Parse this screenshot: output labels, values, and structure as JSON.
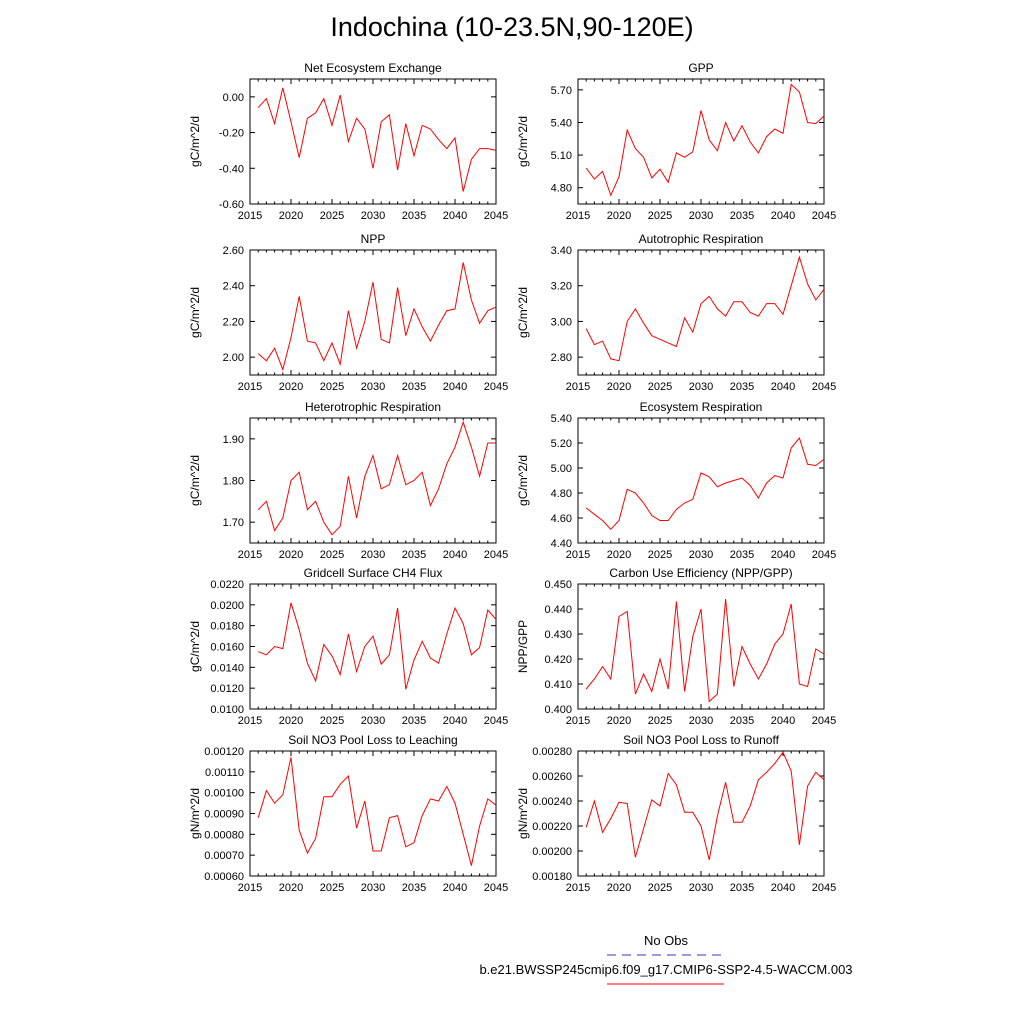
{
  "title": "Indochina (10-23.5N,90-120E)",
  "legend": {
    "obs_label": "No Obs",
    "obs_color": "#3333cc",
    "model_label": "b.e21.BWSSP245cmip6.f09_g17.CMIP6-SSP2-4.5-WACCM.003",
    "model_color": "#ff0000"
  },
  "chart_data": [
    {
      "type": "line",
      "title": "Net Ecosystem Exchange",
      "ylabel": "gC/m^2/d",
      "xlim": [
        2015,
        2045
      ],
      "ylim": [
        -0.6,
        0.1
      ],
      "xticks": [
        2015,
        2020,
        2025,
        2030,
        2035,
        2040,
        2045
      ],
      "yticks": [
        -0.6,
        -0.4,
        -0.2,
        0.0
      ],
      "ytick_labels": [
        "-0.60",
        "-0.40",
        "-0.20",
        "0.00"
      ],
      "x": [
        2016,
        2017,
        2018,
        2019,
        2020,
        2021,
        2022,
        2023,
        2024,
        2025,
        2026,
        2027,
        2028,
        2029,
        2030,
        2031,
        2032,
        2033,
        2034,
        2035,
        2036,
        2037,
        2038,
        2039,
        2040,
        2041,
        2042,
        2043,
        2044,
        2045
      ],
      "series": [
        {
          "color": "#ff0000",
          "values": [
            -0.06,
            -0.01,
            -0.15,
            0.05,
            -0.14,
            -0.34,
            -0.12,
            -0.09,
            -0.01,
            -0.16,
            0.01,
            -0.25,
            -0.12,
            -0.18,
            -0.4,
            -0.14,
            -0.1,
            -0.41,
            -0.15,
            -0.33,
            -0.16,
            -0.18,
            -0.24,
            -0.29,
            -0.23,
            -0.53,
            -0.35,
            -0.29,
            -0.29,
            -0.3
          ]
        }
      ]
    },
    {
      "type": "line",
      "title": "GPP",
      "ylabel": "gC/m^2/d",
      "xlim": [
        2015,
        2045
      ],
      "ylim": [
        4.65,
        5.8
      ],
      "xticks": [
        2015,
        2020,
        2025,
        2030,
        2035,
        2040,
        2045
      ],
      "yticks": [
        4.8,
        5.1,
        5.4,
        5.7
      ],
      "ytick_labels": [
        "4.80",
        "5.10",
        "5.40",
        "5.70"
      ],
      "x": [
        2016,
        2017,
        2018,
        2019,
        2020,
        2021,
        2022,
        2023,
        2024,
        2025,
        2026,
        2027,
        2028,
        2029,
        2030,
        2031,
        2032,
        2033,
        2034,
        2035,
        2036,
        2037,
        2038,
        2039,
        2040,
        2041,
        2042,
        2043,
        2044,
        2045
      ],
      "series": [
        {
          "color": "#ff0000",
          "values": [
            4.98,
            4.88,
            4.95,
            4.73,
            4.9,
            5.33,
            5.16,
            5.08,
            4.89,
            4.97,
            4.85,
            5.12,
            5.08,
            5.13,
            5.51,
            5.24,
            5.14,
            5.4,
            5.23,
            5.37,
            5.22,
            5.12,
            5.27,
            5.34,
            5.3,
            5.75,
            5.68,
            5.4,
            5.39,
            5.46
          ]
        }
      ]
    },
    {
      "type": "line",
      "title": "NPP",
      "ylabel": "gC/m^2/d",
      "xlim": [
        2015,
        2045
      ],
      "ylim": [
        1.9,
        2.6
      ],
      "xticks": [
        2015,
        2020,
        2025,
        2030,
        2035,
        2040,
        2045
      ],
      "yticks": [
        2.0,
        2.2,
        2.4,
        2.6
      ],
      "ytick_labels": [
        "2.00",
        "2.20",
        "2.40",
        "2.60"
      ],
      "x": [
        2016,
        2017,
        2018,
        2019,
        2020,
        2021,
        2022,
        2023,
        2024,
        2025,
        2026,
        2027,
        2028,
        2029,
        2030,
        2031,
        2032,
        2033,
        2034,
        2035,
        2036,
        2037,
        2038,
        2039,
        2040,
        2041,
        2042,
        2043,
        2044,
        2045
      ],
      "series": [
        {
          "color": "#ff0000",
          "values": [
            2.02,
            1.98,
            2.05,
            1.93,
            2.11,
            2.34,
            2.09,
            2.08,
            1.98,
            2.08,
            1.96,
            2.26,
            2.05,
            2.2,
            2.42,
            2.1,
            2.08,
            2.39,
            2.12,
            2.27,
            2.17,
            2.09,
            2.18,
            2.26,
            2.27,
            2.53,
            2.32,
            2.19,
            2.26,
            2.28
          ]
        }
      ]
    },
    {
      "type": "line",
      "title": "Autotrophic Respiration",
      "ylabel": "gC/m^2/d",
      "xlim": [
        2015,
        2045
      ],
      "ylim": [
        2.7,
        3.4
      ],
      "xticks": [
        2015,
        2020,
        2025,
        2030,
        2035,
        2040,
        2045
      ],
      "yticks": [
        2.8,
        3.0,
        3.2,
        3.4
      ],
      "ytick_labels": [
        "2.80",
        "3.00",
        "3.20",
        "3.40"
      ],
      "x": [
        2016,
        2017,
        2018,
        2019,
        2020,
        2021,
        2022,
        2023,
        2024,
        2025,
        2026,
        2027,
        2028,
        2029,
        2030,
        2031,
        2032,
        2033,
        2034,
        2035,
        2036,
        2037,
        2038,
        2039,
        2040,
        2041,
        2042,
        2043,
        2044,
        2045
      ],
      "series": [
        {
          "color": "#ff0000",
          "values": [
            2.96,
            2.87,
            2.89,
            2.79,
            2.78,
            3.0,
            3.07,
            2.99,
            2.92,
            2.9,
            2.88,
            2.86,
            3.02,
            2.94,
            3.1,
            3.14,
            3.07,
            3.03,
            3.11,
            3.11,
            3.05,
            3.03,
            3.1,
            3.1,
            3.04,
            3.2,
            3.36,
            3.21,
            3.12,
            3.18
          ]
        }
      ]
    },
    {
      "type": "line",
      "title": "Heterotrophic Respiration",
      "ylabel": "gC/m^2/d",
      "xlim": [
        2015,
        2045
      ],
      "ylim": [
        1.65,
        1.95
      ],
      "xticks": [
        2015,
        2020,
        2025,
        2030,
        2035,
        2040,
        2045
      ],
      "yticks": [
        1.7,
        1.8,
        1.9
      ],
      "ytick_labels": [
        "1.70",
        "1.80",
        "1.90"
      ],
      "x": [
        2016,
        2017,
        2018,
        2019,
        2020,
        2021,
        2022,
        2023,
        2024,
        2025,
        2026,
        2027,
        2028,
        2029,
        2030,
        2031,
        2032,
        2033,
        2034,
        2035,
        2036,
        2037,
        2038,
        2039,
        2040,
        2041,
        2042,
        2043,
        2044,
        2045
      ],
      "series": [
        {
          "color": "#ff0000",
          "values": [
            1.73,
            1.75,
            1.68,
            1.71,
            1.8,
            1.82,
            1.73,
            1.75,
            1.7,
            1.67,
            1.69,
            1.81,
            1.71,
            1.81,
            1.86,
            1.78,
            1.79,
            1.86,
            1.79,
            1.8,
            1.82,
            1.74,
            1.78,
            1.84,
            1.88,
            1.94,
            1.88,
            1.81,
            1.89,
            1.89
          ]
        }
      ]
    },
    {
      "type": "line",
      "title": "Ecosystem Respiration",
      "ylabel": "gC/m^2/d",
      "xlim": [
        2015,
        2045
      ],
      "ylim": [
        4.4,
        5.4
      ],
      "xticks": [
        2015,
        2020,
        2025,
        2030,
        2035,
        2040,
        2045
      ],
      "yticks": [
        4.4,
        4.6,
        4.8,
        5.0,
        5.2,
        5.4
      ],
      "ytick_labels": [
        "4.40",
        "4.60",
        "4.80",
        "5.00",
        "5.20",
        "5.40"
      ],
      "x": [
        2016,
        2017,
        2018,
        2019,
        2020,
        2021,
        2022,
        2023,
        2024,
        2025,
        2026,
        2027,
        2028,
        2029,
        2030,
        2031,
        2032,
        2033,
        2034,
        2035,
        2036,
        2037,
        2038,
        2039,
        2040,
        2041,
        2042,
        2043,
        2044,
        2045
      ],
      "series": [
        {
          "color": "#ff0000",
          "values": [
            4.68,
            4.63,
            4.58,
            4.51,
            4.58,
            4.83,
            4.8,
            4.72,
            4.62,
            4.58,
            4.58,
            4.67,
            4.72,
            4.75,
            4.96,
            4.93,
            4.85,
            4.88,
            4.9,
            4.92,
            4.86,
            4.76,
            4.88,
            4.94,
            4.92,
            5.16,
            5.24,
            5.03,
            5.02,
            5.07
          ]
        }
      ]
    },
    {
      "type": "line",
      "title": "Gridcell Surface CH4 Flux",
      "ylabel": "gC/m^2/d",
      "xlim": [
        2015,
        2045
      ],
      "ylim": [
        0.01,
        0.022
      ],
      "xticks": [
        2015,
        2020,
        2025,
        2030,
        2035,
        2040,
        2045
      ],
      "yticks": [
        0.01,
        0.012,
        0.014,
        0.016,
        0.018,
        0.02,
        0.022
      ],
      "ytick_labels": [
        "0.0100",
        "0.0120",
        "0.0140",
        "0.0160",
        "0.0180",
        "0.0200",
        "0.0220"
      ],
      "x": [
        2016,
        2017,
        2018,
        2019,
        2020,
        2021,
        2022,
        2023,
        2024,
        2025,
        2026,
        2027,
        2028,
        2029,
        2030,
        2031,
        2032,
        2033,
        2034,
        2035,
        2036,
        2037,
        2038,
        2039,
        2040,
        2041,
        2042,
        2043,
        2044,
        2045
      ],
      "series": [
        {
          "color": "#ff0000",
          "values": [
            0.0155,
            0.0152,
            0.016,
            0.0158,
            0.0202,
            0.0176,
            0.0144,
            0.0127,
            0.0162,
            0.0151,
            0.0133,
            0.0172,
            0.0136,
            0.016,
            0.017,
            0.0143,
            0.0152,
            0.0197,
            0.0119,
            0.0147,
            0.0165,
            0.0149,
            0.0144,
            0.0172,
            0.0197,
            0.0182,
            0.0152,
            0.0159,
            0.0195,
            0.0186
          ]
        }
      ]
    },
    {
      "type": "line",
      "title": "Carbon Use Efficiency (NPP/GPP)",
      "ylabel": "NPP/GPP",
      "xlim": [
        2015,
        2045
      ],
      "ylim": [
        0.4,
        0.45
      ],
      "xticks": [
        2015,
        2020,
        2025,
        2030,
        2035,
        2040,
        2045
      ],
      "yticks": [
        0.4,
        0.41,
        0.42,
        0.43,
        0.44,
        0.45
      ],
      "ytick_labels": [
        "0.400",
        "0.410",
        "0.420",
        "0.430",
        "0.440",
        "0.450"
      ],
      "x": [
        2016,
        2017,
        2018,
        2019,
        2020,
        2021,
        2022,
        2023,
        2024,
        2025,
        2026,
        2027,
        2028,
        2029,
        2030,
        2031,
        2032,
        2033,
        2034,
        2035,
        2036,
        2037,
        2038,
        2039,
        2040,
        2041,
        2042,
        2043,
        2044,
        2045
      ],
      "series": [
        {
          "color": "#ff0000",
          "values": [
            0.408,
            0.412,
            0.417,
            0.412,
            0.437,
            0.439,
            0.406,
            0.414,
            0.407,
            0.42,
            0.408,
            0.443,
            0.407,
            0.429,
            0.44,
            0.403,
            0.406,
            0.444,
            0.409,
            0.425,
            0.418,
            0.412,
            0.418,
            0.426,
            0.43,
            0.442,
            0.41,
            0.409,
            0.424,
            0.422
          ]
        }
      ]
    },
    {
      "type": "line",
      "title": "Soil NO3 Pool Loss to Leaching",
      "ylabel": "gN/m^2/d",
      "xlim": [
        2015,
        2045
      ],
      "ylim": [
        0.0006,
        0.0012
      ],
      "xticks": [
        2015,
        2020,
        2025,
        2030,
        2035,
        2040,
        2045
      ],
      "yticks": [
        0.0006,
        0.0007,
        0.0008,
        0.0009,
        0.001,
        0.0011,
        0.0012
      ],
      "ytick_labels": [
        "0.00060",
        "0.00070",
        "0.00080",
        "0.00090",
        "0.00100",
        "0.00110",
        "0.00120"
      ],
      "x": [
        2016,
        2017,
        2018,
        2019,
        2020,
        2021,
        2022,
        2023,
        2024,
        2025,
        2026,
        2027,
        2028,
        2029,
        2030,
        2031,
        2032,
        2033,
        2034,
        2035,
        2036,
        2037,
        2038,
        2039,
        2040,
        2041,
        2042,
        2043,
        2044,
        2045
      ],
      "series": [
        {
          "color": "#ff0000",
          "values": [
            0.00088,
            0.00101,
            0.00095,
            0.00099,
            0.00117,
            0.00082,
            0.00071,
            0.00078,
            0.00098,
            0.00098,
            0.00104,
            0.00108,
            0.00083,
            0.00096,
            0.00072,
            0.00072,
            0.00088,
            0.00089,
            0.00074,
            0.00076,
            0.00089,
            0.00097,
            0.00096,
            0.00103,
            0.00095,
            0.0008,
            0.00065,
            0.00084,
            0.00097,
            0.00094
          ]
        }
      ]
    },
    {
      "type": "line",
      "title": "Soil NO3 Pool Loss to Runoff",
      "ylabel": "gN/m^2/d",
      "xlim": [
        2015,
        2045
      ],
      "ylim": [
        0.0018,
        0.0028
      ],
      "xticks": [
        2015,
        2020,
        2025,
        2030,
        2035,
        2040,
        2045
      ],
      "yticks": [
        0.0018,
        0.002,
        0.0022,
        0.0024,
        0.0026,
        0.0028
      ],
      "ytick_labels": [
        "0.00180",
        "0.00200",
        "0.00220",
        "0.00240",
        "0.00260",
        "0.00280"
      ],
      "x": [
        2016,
        2017,
        2018,
        2019,
        2020,
        2021,
        2022,
        2023,
        2024,
        2025,
        2026,
        2027,
        2028,
        2029,
        2030,
        2031,
        2032,
        2033,
        2034,
        2035,
        2036,
        2037,
        2038,
        2039,
        2040,
        2041,
        2042,
        2043,
        2044,
        2045
      ],
      "series": [
        {
          "color": "#ff0000",
          "values": [
            0.00219,
            0.0024,
            0.00215,
            0.00226,
            0.00239,
            0.00238,
            0.00195,
            0.00218,
            0.00241,
            0.00236,
            0.00262,
            0.00253,
            0.00231,
            0.00231,
            0.0022,
            0.00193,
            0.00228,
            0.00255,
            0.00223,
            0.00223,
            0.00236,
            0.00257,
            0.00263,
            0.0027,
            0.00279,
            0.00264,
            0.00205,
            0.00252,
            0.00263,
            0.00257
          ]
        }
      ]
    }
  ]
}
